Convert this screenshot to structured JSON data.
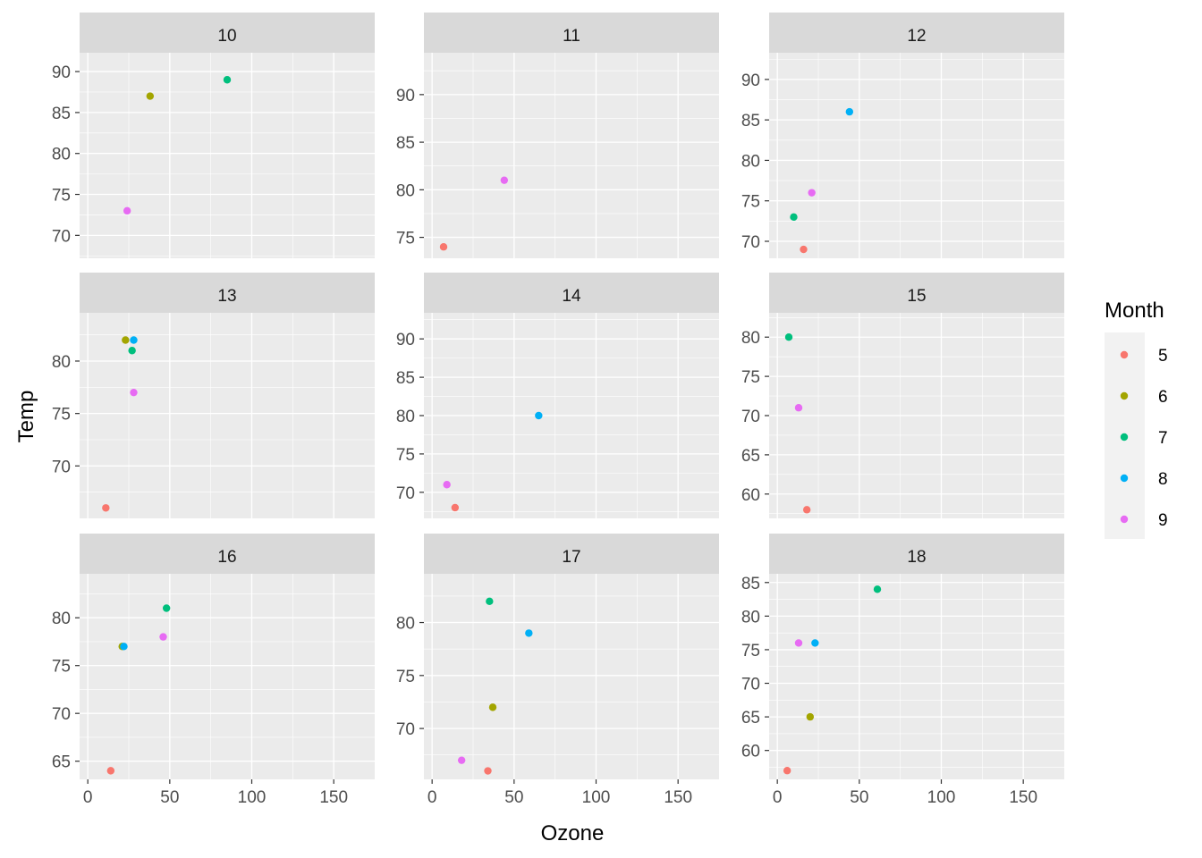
{
  "chart_data": {
    "type": "scatter",
    "xlabel": "Ozone",
    "ylabel": "Temp",
    "xlim": [
      -5,
      175
    ],
    "x_ticks": [
      0,
      50,
      100,
      150
    ],
    "legend": {
      "title": "Month",
      "position": "right",
      "entries": [
        "5",
        "6",
        "7",
        "8",
        "9"
      ]
    },
    "colors": {
      "5": "#F8766D",
      "6": "#A3A500",
      "7": "#00BF7D",
      "8": "#00B0F6",
      "9": "#E76BF3"
    },
    "panel_background": "#EBEBEB",
    "strip_background": "#D9D9D9",
    "grid": true,
    "panels": [
      {
        "label": "10",
        "ylim": [
          67.2,
          92.3
        ],
        "y_ticks": [
          70,
          75,
          80,
          85,
          90
        ],
        "points": [
          {
            "x": 38,
            "y": 87,
            "month": "6"
          },
          {
            "x": 85,
            "y": 89,
            "month": "7"
          },
          {
            "x": 24,
            "y": 73,
            "month": "9"
          }
        ]
      },
      {
        "label": "11",
        "ylim": [
          72.8,
          94.4
        ],
        "y_ticks": [
          75,
          80,
          85,
          90
        ],
        "points": [
          {
            "x": 7,
            "y": 74,
            "month": "5"
          },
          {
            "x": 44,
            "y": 81,
            "month": "9"
          }
        ]
      },
      {
        "label": "12",
        "ylim": [
          67.9,
          93.3
        ],
        "y_ticks": [
          70,
          75,
          80,
          85,
          90
        ],
        "points": [
          {
            "x": 16,
            "y": 69,
            "month": "5"
          },
          {
            "x": 10,
            "y": 73,
            "month": "7"
          },
          {
            "x": 44,
            "y": 86,
            "month": "8"
          },
          {
            "x": 21,
            "y": 76,
            "month": "9"
          }
        ]
      },
      {
        "label": "13",
        "ylim": [
          65,
          84.6
        ],
        "y_ticks": [
          70,
          75,
          80
        ],
        "points": [
          {
            "x": 11,
            "y": 66,
            "month": "5"
          },
          {
            "x": 23,
            "y": 82,
            "month": "6"
          },
          {
            "x": 27,
            "y": 81,
            "month": "7"
          },
          {
            "x": 28,
            "y": 82,
            "month": "8"
          },
          {
            "x": 28,
            "y": 77,
            "month": "9"
          }
        ]
      },
      {
        "label": "14",
        "ylim": [
          66.6,
          93.4
        ],
        "y_ticks": [
          70,
          75,
          80,
          85,
          90
        ],
        "points": [
          {
            "x": 14,
            "y": 68,
            "month": "5"
          },
          {
            "x": 65,
            "y": 80,
            "month": "8"
          },
          {
            "x": 9,
            "y": 71,
            "month": "9"
          }
        ]
      },
      {
        "label": "15",
        "ylim": [
          56.9,
          83.1
        ],
        "y_ticks": [
          60,
          65,
          70,
          75,
          80
        ],
        "points": [
          {
            "x": 18,
            "y": 58,
            "month": "5"
          },
          {
            "x": 7,
            "y": 80,
            "month": "7"
          },
          {
            "x": 13,
            "y": 71,
            "month": "9"
          }
        ]
      },
      {
        "label": "16",
        "ylim": [
          63.1,
          84.6
        ],
        "y_ticks": [
          65,
          70,
          75,
          80
        ],
        "points": [
          {
            "x": 14,
            "y": 64,
            "month": "5"
          },
          {
            "x": 21,
            "y": 77,
            "month": "6"
          },
          {
            "x": 48,
            "y": 81,
            "month": "7"
          },
          {
            "x": 22,
            "y": 77,
            "month": "8"
          },
          {
            "x": 46,
            "y": 78,
            "month": "9"
          }
        ]
      },
      {
        "label": "17",
        "ylim": [
          65.2,
          84.6
        ],
        "y_ticks": [
          70,
          75,
          80
        ],
        "points": [
          {
            "x": 34,
            "y": 66,
            "month": "5"
          },
          {
            "x": 37,
            "y": 72,
            "month": "6"
          },
          {
            "x": 35,
            "y": 82,
            "month": "7"
          },
          {
            "x": 59,
            "y": 79,
            "month": "8"
          },
          {
            "x": 18,
            "y": 67,
            "month": "9"
          }
        ]
      },
      {
        "label": "18",
        "ylim": [
          55.7,
          86.3
        ],
        "y_ticks": [
          60,
          65,
          70,
          75,
          80,
          85
        ],
        "points": [
          {
            "x": 6,
            "y": 57,
            "month": "5"
          },
          {
            "x": 20,
            "y": 65,
            "month": "6"
          },
          {
            "x": 61,
            "y": 84,
            "month": "7"
          },
          {
            "x": 23,
            "y": 76,
            "month": "8"
          },
          {
            "x": 13,
            "y": 76,
            "month": "9"
          }
        ]
      }
    ]
  }
}
